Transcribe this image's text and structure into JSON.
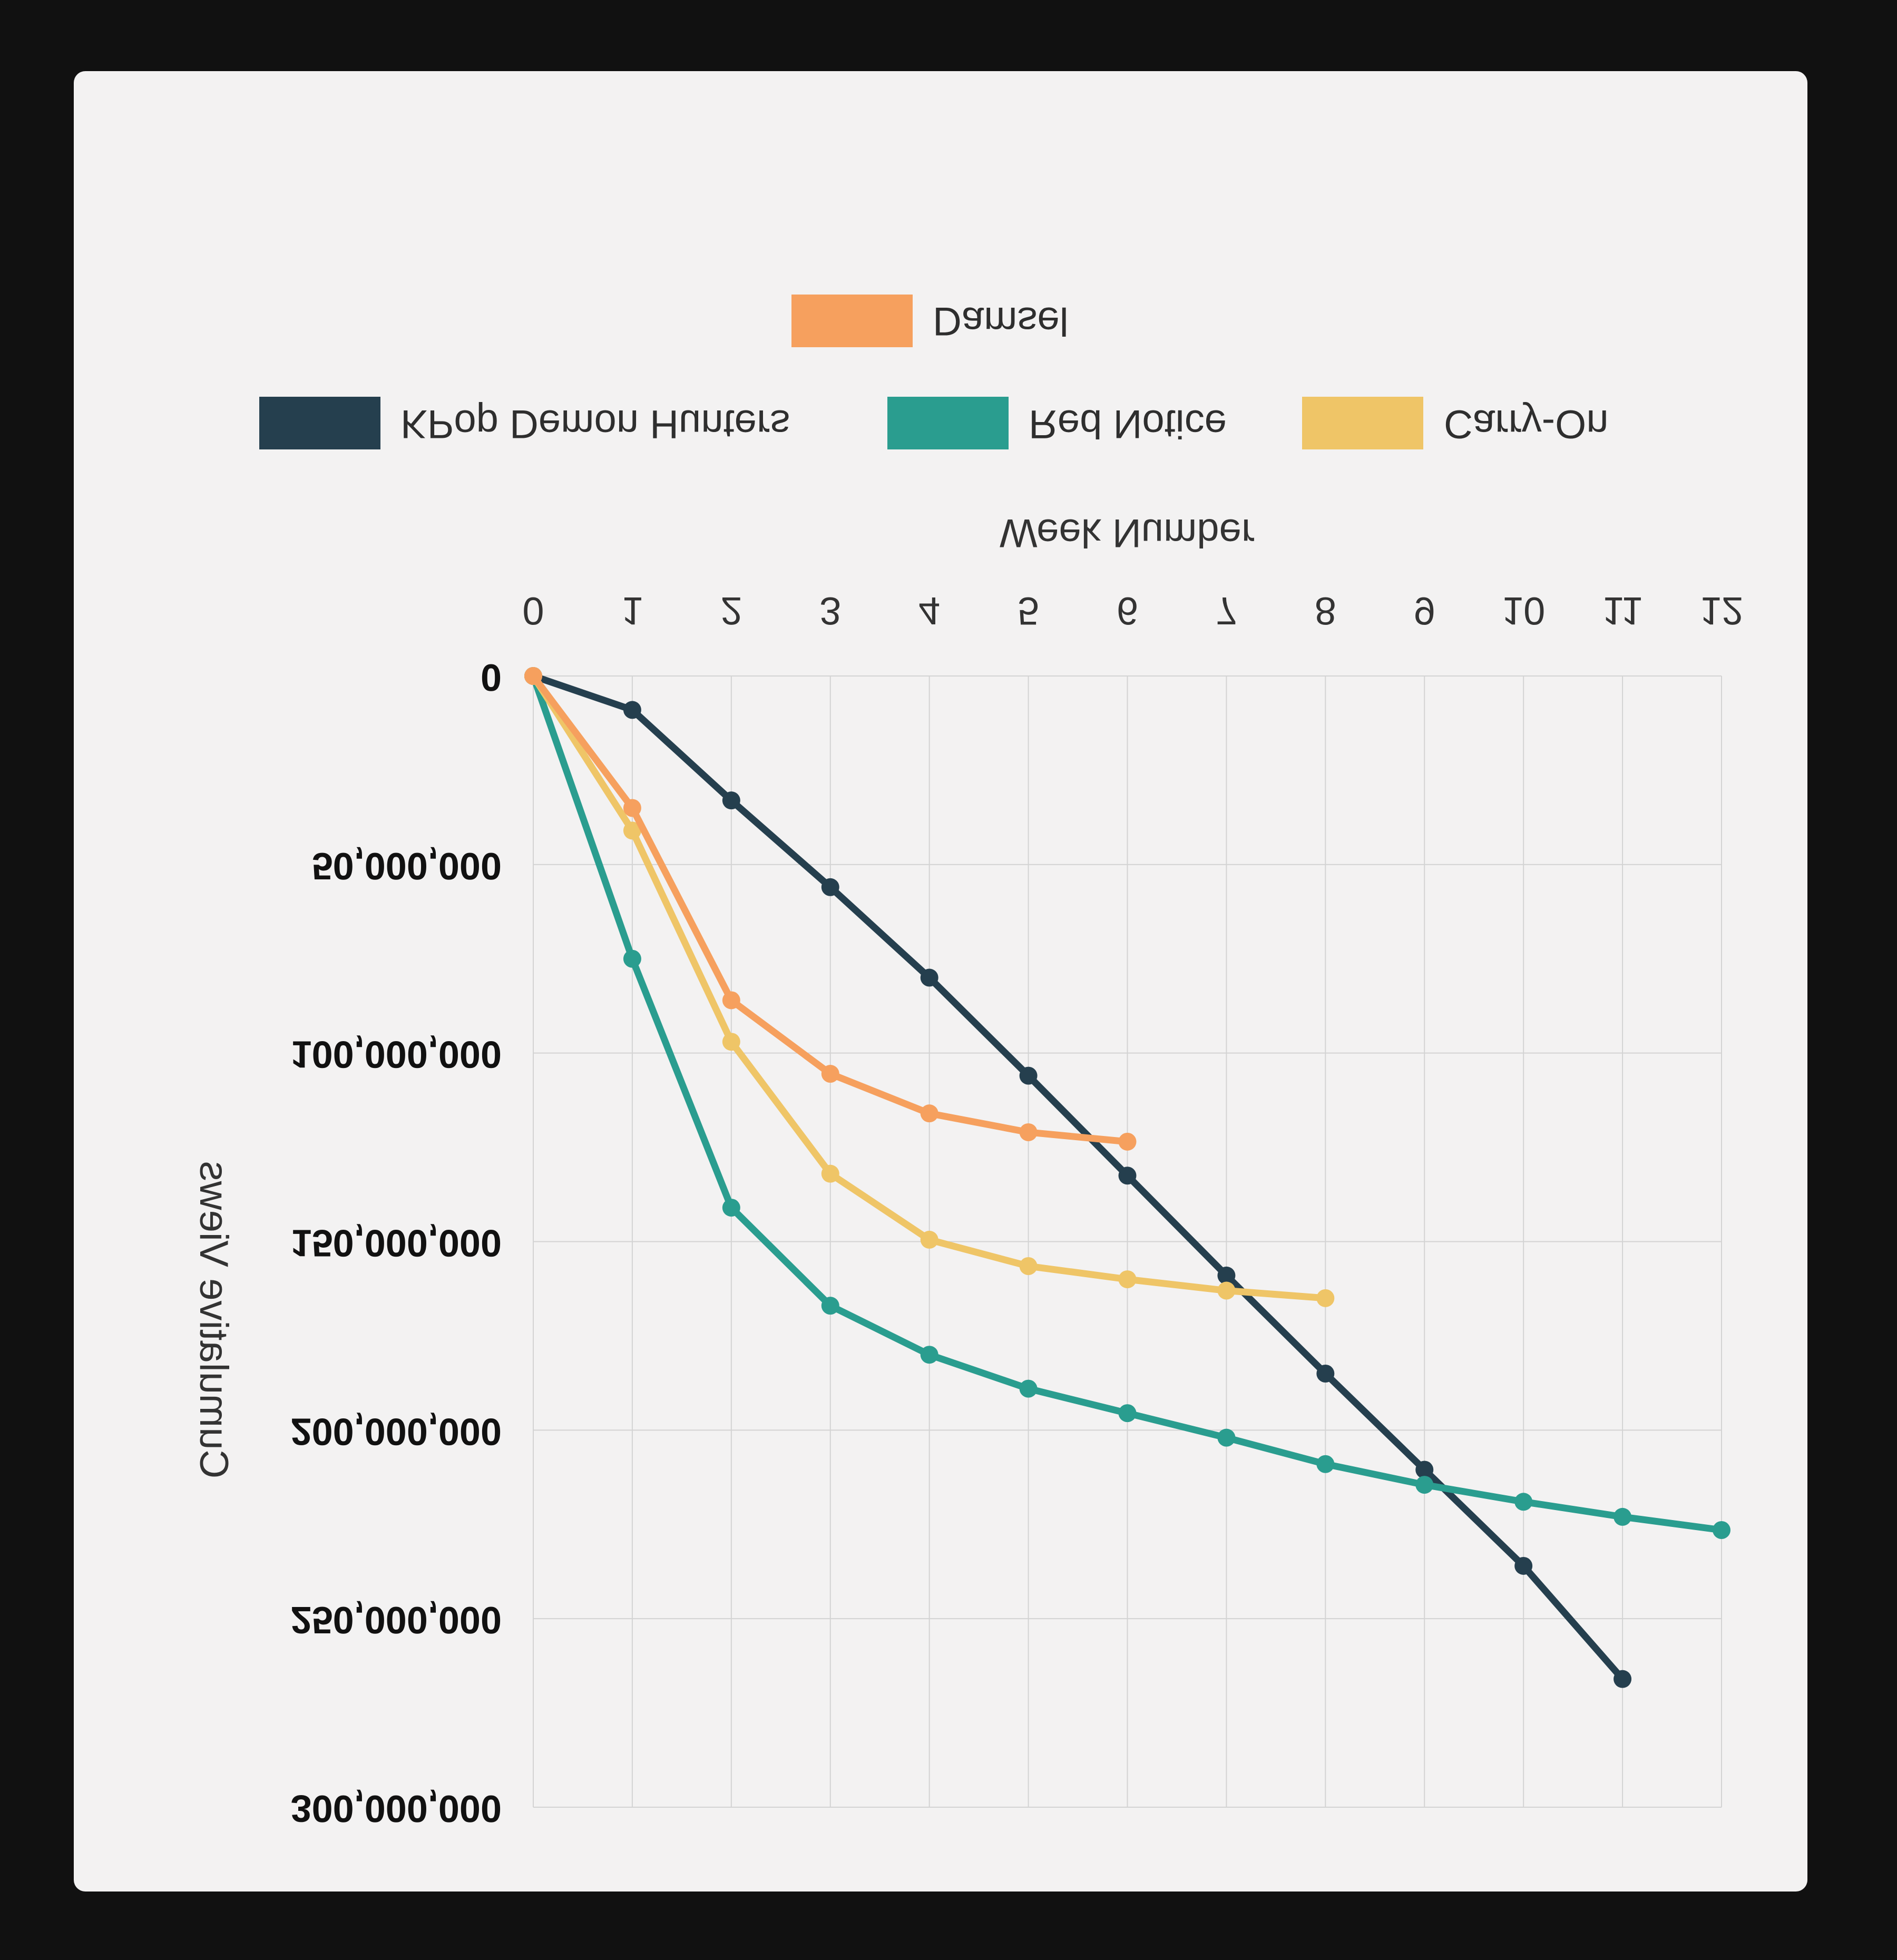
{
  "chart_data": {
    "type": "line",
    "xlabel": "Week Number",
    "ylabel": "Cumulative Views",
    "x_ticks": [
      "0",
      "1",
      "2",
      "3",
      "4",
      "5",
      "6",
      "7",
      "8",
      "9",
      "10",
      "11",
      "12"
    ],
    "y_ticks": [
      "0",
      "50,000,000",
      "100,000,000",
      "150,000,000",
      "200,000,000",
      "250,000,000",
      "300,000,000"
    ],
    "xlim": [
      0,
      12
    ],
    "ylim": [
      0,
      300000000
    ],
    "x_axis_position": "top",
    "y_axis_inverted": true,
    "grid": true,
    "legend_placement": "top",
    "series": [
      {
        "name": "KPop Demon Hunters",
        "color": "#253f4e",
        "x": [
          0,
          1,
          2,
          3,
          4,
          5,
          6,
          7,
          8,
          9,
          10,
          11
        ],
        "values": [
          0,
          9000000,
          33000000,
          56000000,
          80000000,
          106000000,
          132500000,
          159000000,
          185000000,
          210500000,
          236000000,
          266000000
        ]
      },
      {
        "name": "Red Notice",
        "color": "#2a9d8f",
        "x": [
          0,
          1,
          2,
          3,
          4,
          5,
          6,
          7,
          8,
          9,
          10,
          11,
          12
        ],
        "values": [
          0,
          75000000,
          141000000,
          167000000,
          180000000,
          189000000,
          195500000,
          202000000,
          209000000,
          214500000,
          219000000,
          223000000,
          226500000
        ]
      },
      {
        "name": "Carry-On",
        "color": "#efc567",
        "x": [
          0,
          1,
          2,
          3,
          4,
          5,
          6,
          7,
          8
        ],
        "values": [
          0,
          41000000,
          97000000,
          132000000,
          149500000,
          156500000,
          160000000,
          163000000,
          165000000
        ]
      },
      {
        "name": "Damsel",
        "color": "#f6a05e",
        "x": [
          0,
          1,
          2,
          3,
          4,
          5,
          6
        ],
        "values": [
          0,
          35000000,
          86000000,
          105500000,
          116000000,
          121000000,
          123500000
        ]
      }
    ]
  },
  "legend": [
    {
      "label": "KPop Demon Hunters",
      "color": "#253f4e"
    },
    {
      "label": "Red Notice",
      "color": "#2a9d8f"
    },
    {
      "label": "Carry-On",
      "color": "#efc567"
    },
    {
      "label": "Damsel",
      "color": "#f6a05e"
    }
  ]
}
